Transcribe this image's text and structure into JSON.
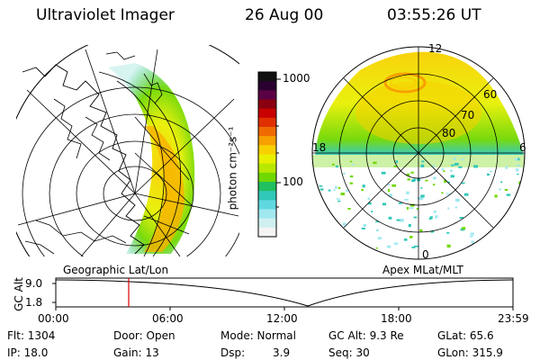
{
  "header": {
    "instrument": "Ultraviolet Imager",
    "date": "26 Aug 00",
    "time": "03:55:26 UT"
  },
  "colorbar": {
    "unit_label": "photon cm⁻²s⁻¹",
    "ticks": [
      "1000",
      "100"
    ],
    "colors": [
      "#111111",
      "#2a0030",
      "#5a0044",
      "#8a0010",
      "#c80000",
      "#e03000",
      "#f06a00",
      "#f8a000",
      "#f8d000",
      "#e8f000",
      "#b8e800",
      "#70d800",
      "#20c060",
      "#30c8b8",
      "#60d8e0",
      "#a0e8f0",
      "#d0f0f0",
      "#f4f4f4"
    ]
  },
  "left_map": {
    "caption": "Geographic Lat/Lon"
  },
  "right_map": {
    "caption": "Apex MLat/MLT",
    "mlt_labels": {
      "top": "12",
      "left": "18",
      "right": "6",
      "bottom": "0"
    },
    "lat_labels": [
      "60",
      "70",
      "80"
    ]
  },
  "timeline": {
    "ylabel": "GC Alt",
    "ytick_top": "9.0",
    "ytick_bottom": "1.8",
    "xticks": [
      "00:00",
      "06:00",
      "12:00",
      "18:00",
      "23:59"
    ],
    "marker_color": "#e00000"
  },
  "info": {
    "flt": "Flt: 1304",
    "ip": "IP: 18.0",
    "door": "Door: Open",
    "gain": "Gain: 13",
    "mode": "Mode: Normal",
    "dsp_label": "Dsp:",
    "dsp_value": "3.9",
    "gc_alt": "GC Alt: 9.3 Re",
    "seq": "Seq: 30",
    "glat": "GLat: 65.6",
    "glon": "GLon: 315.9"
  }
}
